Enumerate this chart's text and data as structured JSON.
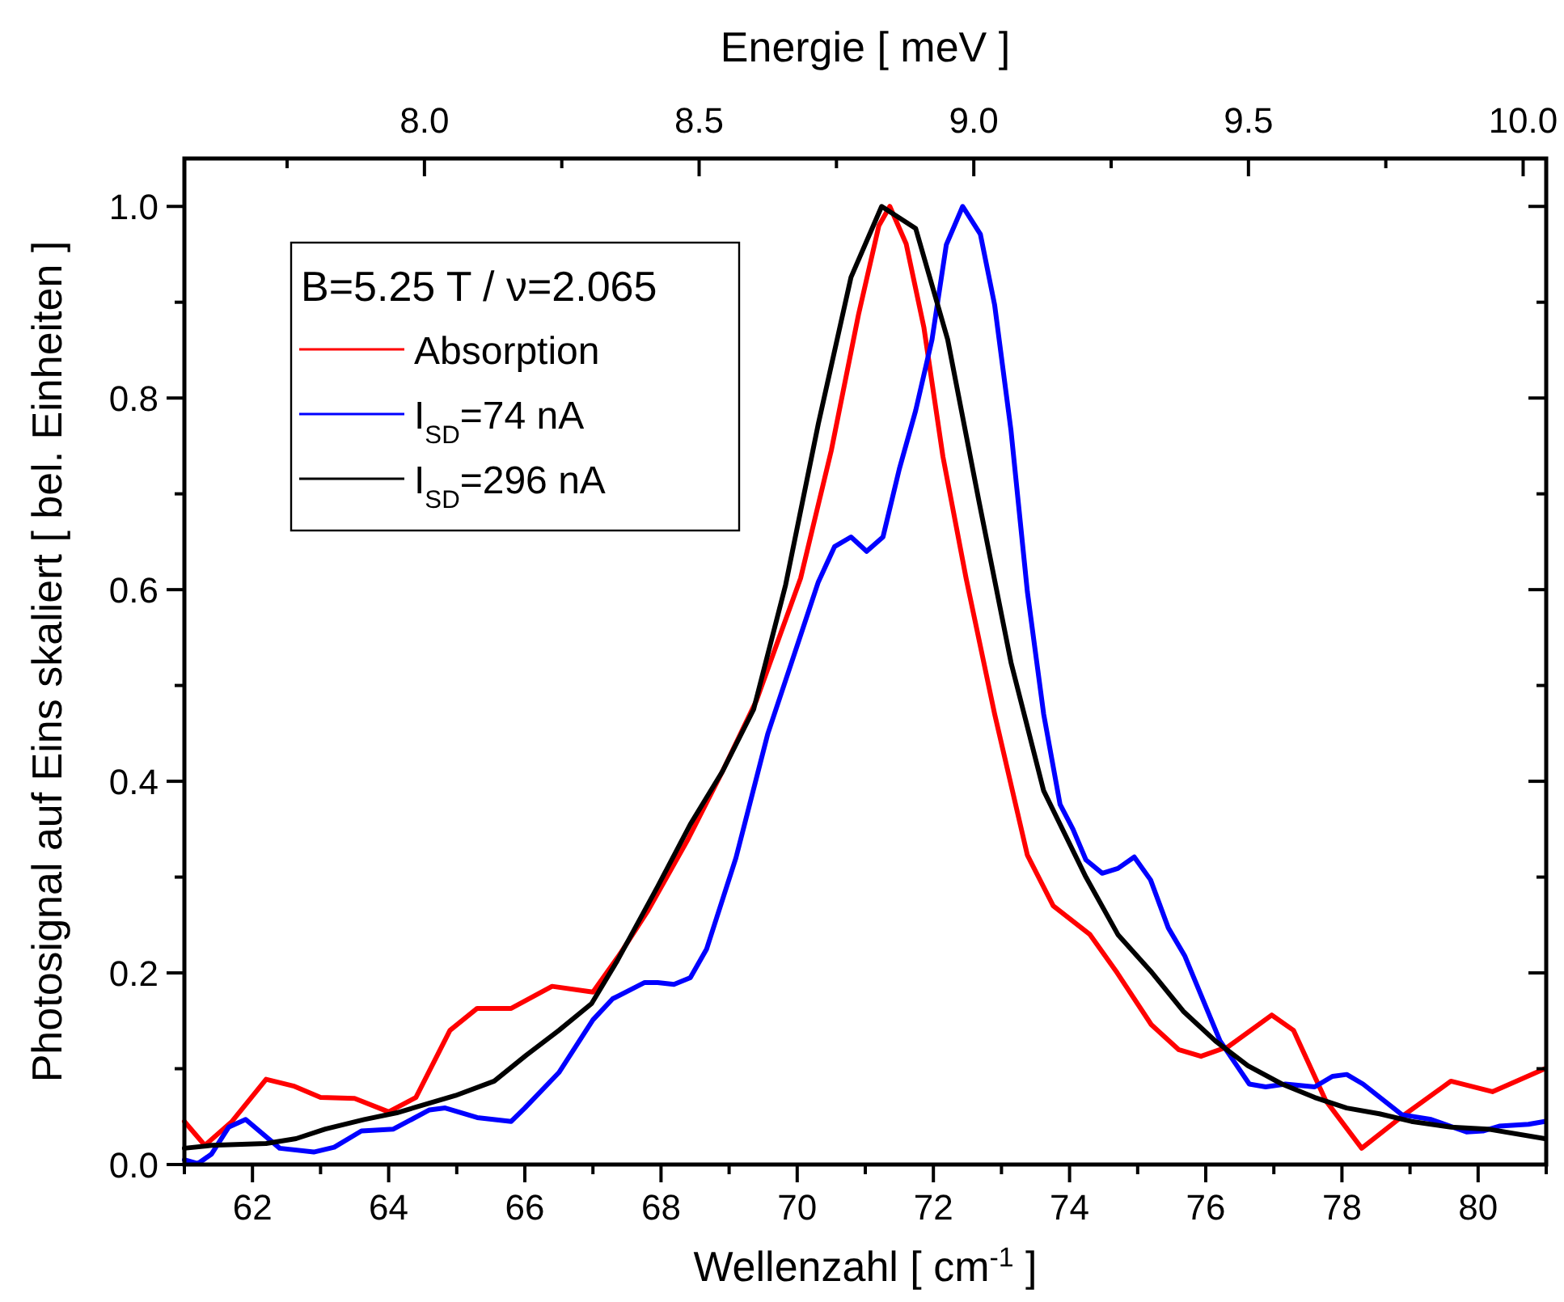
{
  "chart_data": {
    "type": "line",
    "xlabel": "Wellenzahl [ cm$^{-1}$ ]",
    "ylabel": "Photosignal auf Eins skaliert [ bel. Einheiten ]",
    "x2label": "Energie [ meV ]",
    "legend_title": "B=5.25 T / ν=2.065",
    "legend": "top left",
    "grid": false,
    "line_style": "solid",
    "marker": "none",
    "xlim": [
      61,
      81
    ],
    "xticks": [
      {
        "value": 61,
        "label": null
      },
      62,
      {
        "value": 63,
        "label": null
      },
      64,
      {
        "value": 65,
        "label": null
      },
      66,
      {
        "value": 67,
        "label": null
      },
      68,
      {
        "value": 69,
        "label": null
      },
      70,
      {
        "value": 71,
        "label": null
      },
      72,
      {
        "value": 73,
        "label": null
      },
      74,
      {
        "value": 75,
        "label": null
      },
      76,
      {
        "value": 77,
        "label": null
      },
      78,
      {
        "value": 79,
        "label": null
      },
      80,
      {
        "value": 81,
        "label": null
      }
    ],
    "x2lim": [
      7.563,
      10.042
    ],
    "x2ticks": [
      {
        "value": 7.75,
        "label": null
      },
      {
        "value": 8.0,
        "label": "8.0"
      },
      {
        "value": 8.25,
        "label": null
      },
      8.5,
      {
        "value": 8.75,
        "label": null
      },
      {
        "value": 9.0,
        "label": "9.0"
      },
      {
        "value": 9.25,
        "label": null
      },
      9.5,
      {
        "value": 9.75,
        "label": null
      },
      {
        "value": 10.0,
        "label": "10.0"
      }
    ],
    "ylim": [
      0,
      1.05
    ],
    "yticks": [
      {
        "value": 0,
        "label": "0.0"
      },
      {
        "value": 0.1,
        "label": null
      },
      0.2,
      {
        "value": 0.3,
        "label": null
      },
      0.4,
      {
        "value": 0.5,
        "label": null
      },
      0.6,
      {
        "value": 0.7,
        "label": null
      },
      0.8,
      {
        "value": 0.9,
        "label": null
      },
      {
        "value": 1.0,
        "label": "1.0"
      }
    ],
    "series": [
      {
        "name": "Absorption",
        "color": "#ff0000",
        "x": [
          61,
          61.3,
          61.7,
          62.2,
          62.6,
          63,
          63.5,
          64,
          64.4,
          64.9,
          65.3,
          65.8,
          66.4,
          67,
          67.4,
          67.8,
          68.4,
          68.9,
          69.4,
          70.05,
          70.5,
          70.9,
          71.2,
          71.36,
          71.6,
          71.86,
          72.14,
          72.48,
          72.9,
          73.38,
          73.76,
          74.3,
          74.7,
          75.2,
          75.6,
          75.93,
          76.33,
          76.97,
          77.29,
          77.76,
          78.29,
          78.88,
          79.6,
          80.21,
          80.98
        ],
        "values": [
          0.045,
          0.02,
          0.045,
          0.089,
          0.082,
          0.07,
          0.069,
          0.055,
          0.07,
          0.14,
          0.163,
          0.163,
          0.186,
          0.18,
          0.22,
          0.264,
          0.34,
          0.41,
          0.484,
          0.612,
          0.745,
          0.887,
          0.98,
          1.0,
          0.961,
          0.874,
          0.739,
          0.612,
          0.47,
          0.323,
          0.27,
          0.24,
          0.2,
          0.146,
          0.12,
          0.113,
          0.123,
          0.156,
          0.14,
          0.067,
          0.017,
          0.05,
          0.087,
          0.076,
          0.1
        ]
      },
      {
        "name": "I$_{SD}$=74 nA",
        "color": "#0000ff",
        "x": [
          61,
          61.2,
          61.4,
          61.65,
          61.9,
          62.4,
          62.9,
          63.2,
          63.6,
          64.07,
          64.6,
          64.83,
          65.3,
          65.8,
          66.0,
          66.5,
          67.0,
          67.29,
          67.76,
          67.95,
          68.19,
          68.43,
          68.67,
          69.1,
          69.57,
          69.95,
          70.31,
          70.55,
          70.79,
          71.02,
          71.26,
          71.5,
          71.74,
          71.98,
          72.19,
          72.43,
          72.69,
          72.9,
          73.14,
          73.38,
          73.62,
          73.86,
          74.05,
          74.24,
          74.48,
          74.71,
          74.95,
          75.19,
          75.45,
          75.69,
          76.21,
          76.64,
          76.88,
          77.17,
          77.6,
          77.86,
          78.07,
          78.31,
          78.88,
          79.31,
          79.83,
          80.07,
          80.31,
          80.74,
          80.98
        ],
        "values": [
          0.005,
          0.001,
          0.011,
          0.039,
          0.047,
          0.017,
          0.013,
          0.018,
          0.035,
          0.037,
          0.057,
          0.059,
          0.049,
          0.045,
          0.059,
          0.096,
          0.151,
          0.173,
          0.19,
          0.19,
          0.188,
          0.195,
          0.225,
          0.32,
          0.45,
          0.531,
          0.608,
          0.645,
          0.655,
          0.64,
          0.655,
          0.726,
          0.787,
          0.861,
          0.96,
          1.0,
          0.971,
          0.897,
          0.766,
          0.598,
          0.47,
          0.376,
          0.35,
          0.318,
          0.304,
          0.309,
          0.321,
          0.297,
          0.247,
          0.218,
          0.129,
          0.084,
          0.081,
          0.084,
          0.081,
          0.092,
          0.094,
          0.084,
          0.052,
          0.047,
          0.034,
          0.035,
          0.04,
          0.042,
          0.045
        ]
      },
      {
        "name": "I$_{SD}$=296 nA",
        "color": "#000000",
        "x": [
          61,
          61.4,
          62.2,
          62.64,
          63.07,
          63.64,
          64.12,
          64.98,
          65.55,
          66.02,
          66.5,
          66.98,
          67.36,
          67.95,
          68.43,
          68.9,
          69.36,
          69.83,
          70.31,
          70.79,
          71.24,
          71.74,
          72.21,
          72.67,
          73.14,
          73.62,
          74.24,
          74.71,
          75.19,
          75.67,
          76.14,
          76.62,
          77.12,
          77.6,
          78.07,
          78.55,
          79.02,
          79.6,
          80.14,
          80.98
        ],
        "values": [
          0.017,
          0.02,
          0.022,
          0.027,
          0.037,
          0.047,
          0.054,
          0.072,
          0.087,
          0.114,
          0.14,
          0.168,
          0.213,
          0.29,
          0.355,
          0.41,
          0.475,
          0.605,
          0.773,
          0.926,
          1.0,
          0.977,
          0.861,
          0.692,
          0.524,
          0.39,
          0.3,
          0.24,
          0.202,
          0.16,
          0.129,
          0.103,
          0.084,
          0.07,
          0.059,
          0.053,
          0.045,
          0.039,
          0.037,
          0.027
        ]
      }
    ]
  }
}
